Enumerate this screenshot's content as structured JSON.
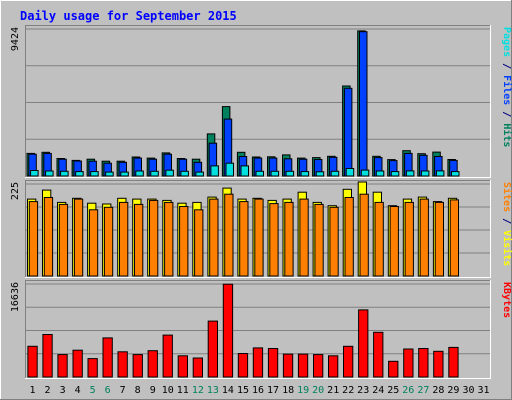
{
  "chart_data": {
    "type": "bar",
    "title": "Daily usage for September 2015",
    "categories": [
      "1",
      "2",
      "3",
      "4",
      "5",
      "6",
      "7",
      "8",
      "9",
      "10",
      "11",
      "12",
      "13",
      "14",
      "15",
      "16",
      "17",
      "18",
      "19",
      "20",
      "21",
      "22",
      "23",
      "24",
      "25",
      "26",
      "27",
      "28",
      "29",
      "30",
      "31"
    ],
    "weekend_days": [
      "5",
      "6",
      "12",
      "13",
      "19",
      "20",
      "26",
      "27"
    ],
    "panels": [
      {
        "id": "hits-files-pages",
        "max_label": "9424",
        "ymax": 9424,
        "side_labels": [
          {
            "text": "Pages",
            "color": "#00E0E0"
          },
          {
            "text": " / ",
            "color": "#000080"
          },
          {
            "text": "Files",
            "color": "#0040FF"
          },
          {
            "text": " / ",
            "color": "#000080"
          },
          {
            "text": "Hits",
            "color": "#00805C"
          }
        ],
        "series": [
          {
            "name": "Hits",
            "color": "#00805C",
            "values": [
              1450,
              1520,
              1120,
              1000,
              1080,
              950,
              950,
              1220,
              1150,
              1480,
              1120,
              1080,
              2700,
              4450,
              1520,
              1220,
              1230,
              1350,
              1150,
              1180,
              1260,
              5770,
              9300,
              1260,
              1050,
              1620,
              1430,
              1530,
              1060,
              0,
              0
            ]
          },
          {
            "name": "Files",
            "color": "#0040FF",
            "values": [
              1400,
              1450,
              1080,
              960,
              950,
              820,
              880,
              1150,
              1080,
              1400,
              1080,
              880,
              2100,
              3650,
              1250,
              1150,
              1150,
              1100,
              1080,
              1060,
              1200,
              5620,
              9250,
              1180,
              990,
              1450,
              1330,
              1250,
              1000,
              0,
              0
            ]
          },
          {
            "name": "Pages",
            "color": "#00E0E0",
            "values": [
              350,
              320,
              300,
              280,
              280,
              250,
              250,
              320,
              300,
              370,
              300,
              250,
              650,
              820,
              650,
              300,
              300,
              300,
              280,
              270,
              300,
              480,
              380,
              320,
              280,
              330,
              320,
              330,
              280,
              0,
              0
            ]
          }
        ]
      },
      {
        "id": "visits-sites",
        "max_label": "225",
        "ymax": 225,
        "side_labels": [
          {
            "text": "Sites",
            "color": "#FF8000"
          },
          {
            "text": " / ",
            "color": "#000080"
          },
          {
            "text": "Visits",
            "color": "#FFFF00"
          }
        ],
        "series": [
          {
            "name": "Visits",
            "color": "#FFFF00",
            "values": [
              188,
              210,
              180,
              190,
              178,
              176,
              190,
              188,
              188,
              185,
              178,
              180,
              193,
              215,
              188,
              190,
              185,
              188,
              205,
              180,
              172,
              212,
              230,
              205,
              172,
              188,
              193,
              182,
              190,
              0,
              0
            ]
          },
          {
            "name": "Sites",
            "color": "#FF8000",
            "values": [
              182,
              192,
              175,
              188,
              162,
              168,
              180,
              175,
              185,
              180,
              170,
              162,
              188,
              200,
              182,
              188,
              177,
              180,
              188,
              175,
              168,
              192,
              200,
              180,
              170,
              180,
              188,
              180,
              186,
              0,
              0
            ]
          }
        ]
      },
      {
        "id": "kbytes",
        "max_label": "16636",
        "ymax": 16636,
        "side_labels": [
          {
            "text": "KBytes",
            "color": "#FF0000"
          }
        ],
        "series": [
          {
            "name": "KBytes",
            "color": "#FF0000",
            "values": [
              5500,
              7600,
              4000,
              4800,
              3300,
              7000,
              4500,
              4000,
              4700,
              7500,
              3800,
              3400,
              10000,
              16600,
              4200,
              5200,
              5100,
              4100,
              4100,
              4000,
              3800,
              5500,
              12000,
              8000,
              2800,
              5000,
              5100,
              4600,
              5300,
              0,
              0
            ]
          }
        ]
      }
    ]
  }
}
